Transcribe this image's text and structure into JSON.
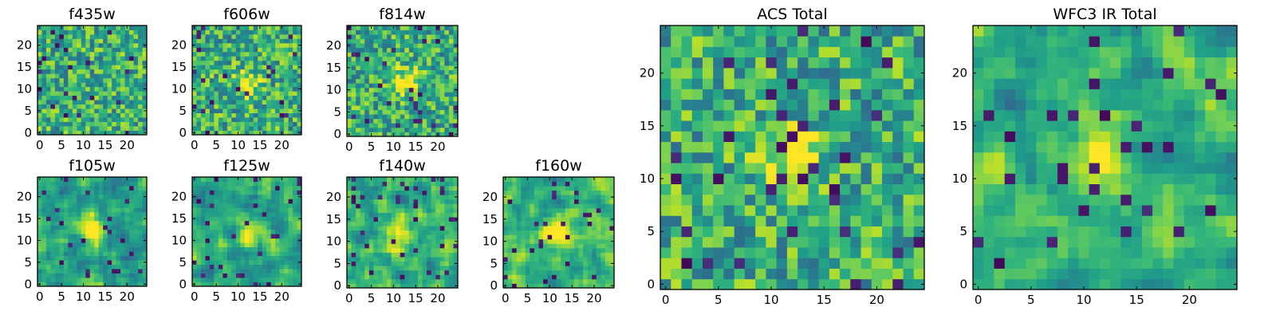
{
  "chart_data": [
    {
      "type": "heatmap",
      "title": "f435w",
      "xticks": [
        0,
        5,
        10,
        15,
        20
      ],
      "yticks": [
        0,
        5,
        10,
        15,
        20
      ],
      "xlim": [
        0,
        24
      ],
      "ylim": [
        0,
        24
      ],
      "grid_size": 25,
      "colormap": "viridis",
      "texture": "noise",
      "source_center": null
    },
    {
      "type": "heatmap",
      "title": "f606w",
      "xticks": [
        0,
        5,
        10,
        15,
        20
      ],
      "yticks": [
        0,
        5,
        10,
        15,
        20
      ],
      "xlim": [
        0,
        24
      ],
      "ylim": [
        0,
        24
      ],
      "grid_size": 25,
      "colormap": "viridis",
      "texture": "noise",
      "source_center": [
        12,
        11
      ]
    },
    {
      "type": "heatmap",
      "title": "f814w",
      "xticks": [
        0,
        5,
        10,
        15,
        20
      ],
      "yticks": [
        0,
        5,
        10,
        15,
        20
      ],
      "xlim": [
        0,
        24
      ],
      "ylim": [
        0,
        24
      ],
      "grid_size": 25,
      "colormap": "viridis",
      "texture": "noise",
      "source_center": [
        13,
        12
      ]
    },
    {
      "type": "heatmap",
      "title": "f105w",
      "xticks": [
        0,
        5,
        10,
        15,
        20
      ],
      "yticks": [
        0,
        5,
        10,
        15,
        20
      ],
      "xlim": [
        0,
        24
      ],
      "ylim": [
        0,
        24
      ],
      "grid_size": 25,
      "colormap": "viridis",
      "texture": "smooth",
      "source_center": [
        12,
        12
      ]
    },
    {
      "type": "heatmap",
      "title": "f125w",
      "xticks": [
        0,
        5,
        10,
        15,
        20
      ],
      "yticks": [
        0,
        5,
        10,
        15,
        20
      ],
      "xlim": [
        0,
        24
      ],
      "ylim": [
        0,
        24
      ],
      "grid_size": 25,
      "colormap": "viridis",
      "texture": "smooth",
      "source_center": [
        13,
        11
      ]
    },
    {
      "type": "heatmap",
      "title": "f140w",
      "xticks": [
        0,
        5,
        10,
        15,
        20
      ],
      "yticks": [
        0,
        5,
        10,
        15,
        20
      ],
      "xlim": [
        0,
        24
      ],
      "ylim": [
        0,
        24
      ],
      "grid_size": 25,
      "colormap": "viridis",
      "texture": "smooth",
      "source_center": [
        10,
        11
      ]
    },
    {
      "type": "heatmap",
      "title": "f160w",
      "xticks": [
        0,
        5,
        10,
        15,
        20
      ],
      "yticks": [
        0,
        5,
        10,
        15,
        20
      ],
      "xlim": [
        0,
        24
      ],
      "ylim": [
        0,
        24
      ],
      "grid_size": 25,
      "colormap": "viridis",
      "texture": "smooth",
      "source_center": [
        11,
        12
      ]
    },
    {
      "type": "heatmap",
      "title": "ACS Total",
      "xticks": [
        0,
        5,
        10,
        15,
        20
      ],
      "yticks": [
        0,
        5,
        10,
        15,
        20
      ],
      "xlim": [
        0,
        24
      ],
      "ylim": [
        0,
        24
      ],
      "grid_size": 25,
      "colormap": "viridis",
      "texture": "noise",
      "source_center": [
        12,
        12
      ]
    },
    {
      "type": "heatmap",
      "title": "WFC3 IR Total",
      "xticks": [
        0,
        5,
        10,
        15,
        20
      ],
      "yticks": [
        0,
        5,
        10,
        15,
        20
      ],
      "xlim": [
        0,
        24
      ],
      "ylim": [
        0,
        24
      ],
      "grid_size": 25,
      "colormap": "viridis",
      "texture": "smooth",
      "source_center": [
        12,
        12
      ]
    }
  ]
}
